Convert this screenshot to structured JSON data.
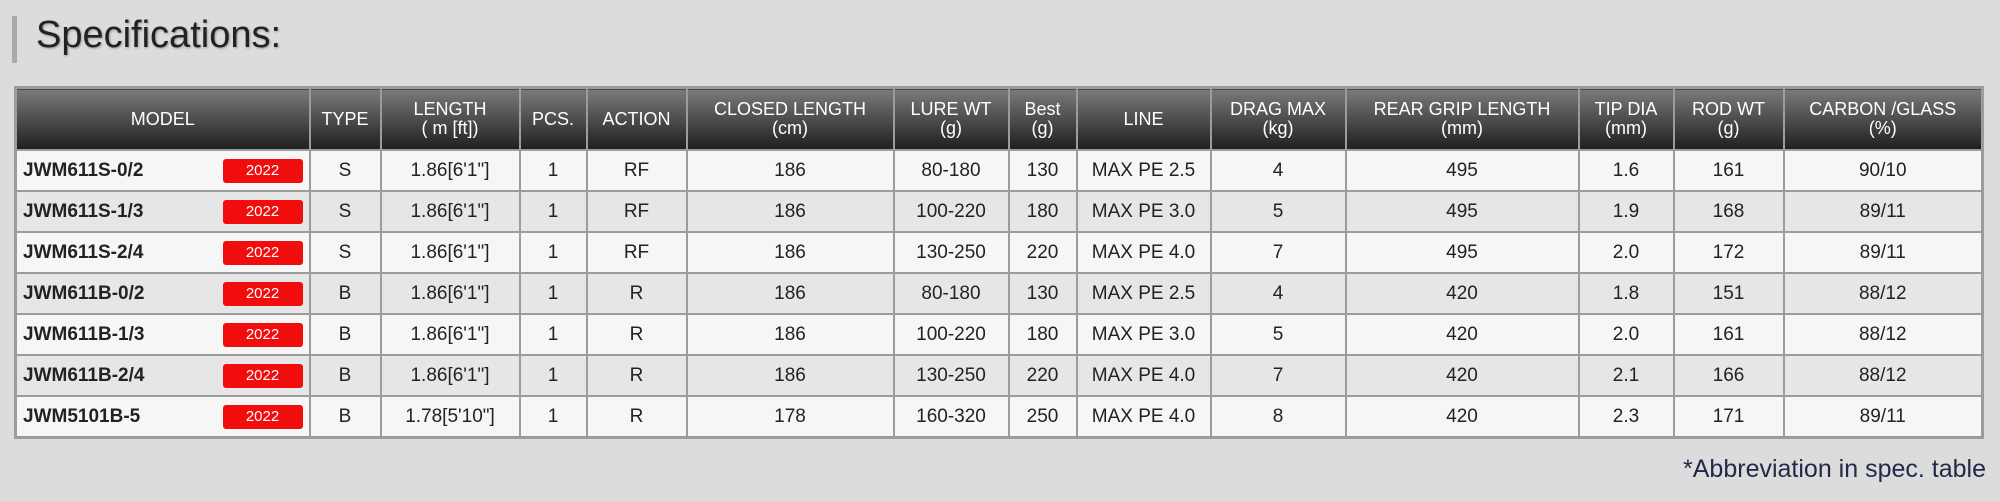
{
  "title": "Specifications:",
  "headers": [
    [
      "MODEL",
      ""
    ],
    [
      "TYPE",
      ""
    ],
    [
      "LENGTH",
      "( m [ft])"
    ],
    [
      "PCS.",
      ""
    ],
    [
      "ACTION",
      ""
    ],
    [
      "CLOSED LENGTH",
      "(cm)"
    ],
    [
      "LURE WT",
      "(g)"
    ],
    [
      "Best",
      "(g)"
    ],
    [
      "LINE",
      ""
    ],
    [
      "DRAG MAX",
      "(kg)"
    ],
    [
      "REAR GRIP LENGTH",
      "(mm)"
    ],
    [
      "TIP DIA",
      "(mm)"
    ],
    [
      "ROD WT",
      "(g)"
    ],
    [
      "CARBON /GLASS",
      "(%)"
    ]
  ],
  "badge_color": "#f10d0d",
  "rows": [
    {
      "model": "JWM611S-0/2",
      "badge": "2022",
      "cells": [
        "S",
        "1.86[6'1\"]",
        "1",
        "RF",
        "186",
        "80-180",
        "130",
        "MAX PE 2.5",
        "4",
        "495",
        "1.6",
        "161",
        "90/10"
      ]
    },
    {
      "model": "JWM611S-1/3",
      "badge": "2022",
      "cells": [
        "S",
        "1.86[6'1\"]",
        "1",
        "RF",
        "186",
        "100-220",
        "180",
        "MAX PE 3.0",
        "5",
        "495",
        "1.9",
        "168",
        "89/11"
      ]
    },
    {
      "model": "JWM611S-2/4",
      "badge": "2022",
      "cells": [
        "S",
        "1.86[6'1\"]",
        "1",
        "RF",
        "186",
        "130-250",
        "220",
        "MAX PE 4.0",
        "7",
        "495",
        "2.0",
        "172",
        "89/11"
      ]
    },
    {
      "model": "JWM611B-0/2",
      "badge": "2022",
      "cells": [
        "B",
        "1.86[6'1\"]",
        "1",
        "R",
        "186",
        "80-180",
        "130",
        "MAX PE 2.5",
        "4",
        "420",
        "1.8",
        "151",
        "88/12"
      ]
    },
    {
      "model": "JWM611B-1/3",
      "badge": "2022",
      "cells": [
        "B",
        "1.86[6'1\"]",
        "1",
        "R",
        "186",
        "100-220",
        "180",
        "MAX PE 3.0",
        "5",
        "420",
        "2.0",
        "161",
        "88/12"
      ]
    },
    {
      "model": "JWM611B-2/4",
      "badge": "2022",
      "cells": [
        "B",
        "1.86[6'1\"]",
        "1",
        "R",
        "186",
        "130-250",
        "220",
        "MAX PE 4.0",
        "7",
        "420",
        "2.1",
        "166",
        "88/12"
      ]
    },
    {
      "model": "JWM5101B-5",
      "badge": "2022",
      "cells": [
        "B",
        "1.78[5'10\"]",
        "1",
        "R",
        "178",
        "160-320",
        "250",
        "MAX PE 4.0",
        "8",
        "420",
        "2.3",
        "171",
        "89/11"
      ]
    }
  ],
  "footnote": "*Abbreviation in spec. table"
}
